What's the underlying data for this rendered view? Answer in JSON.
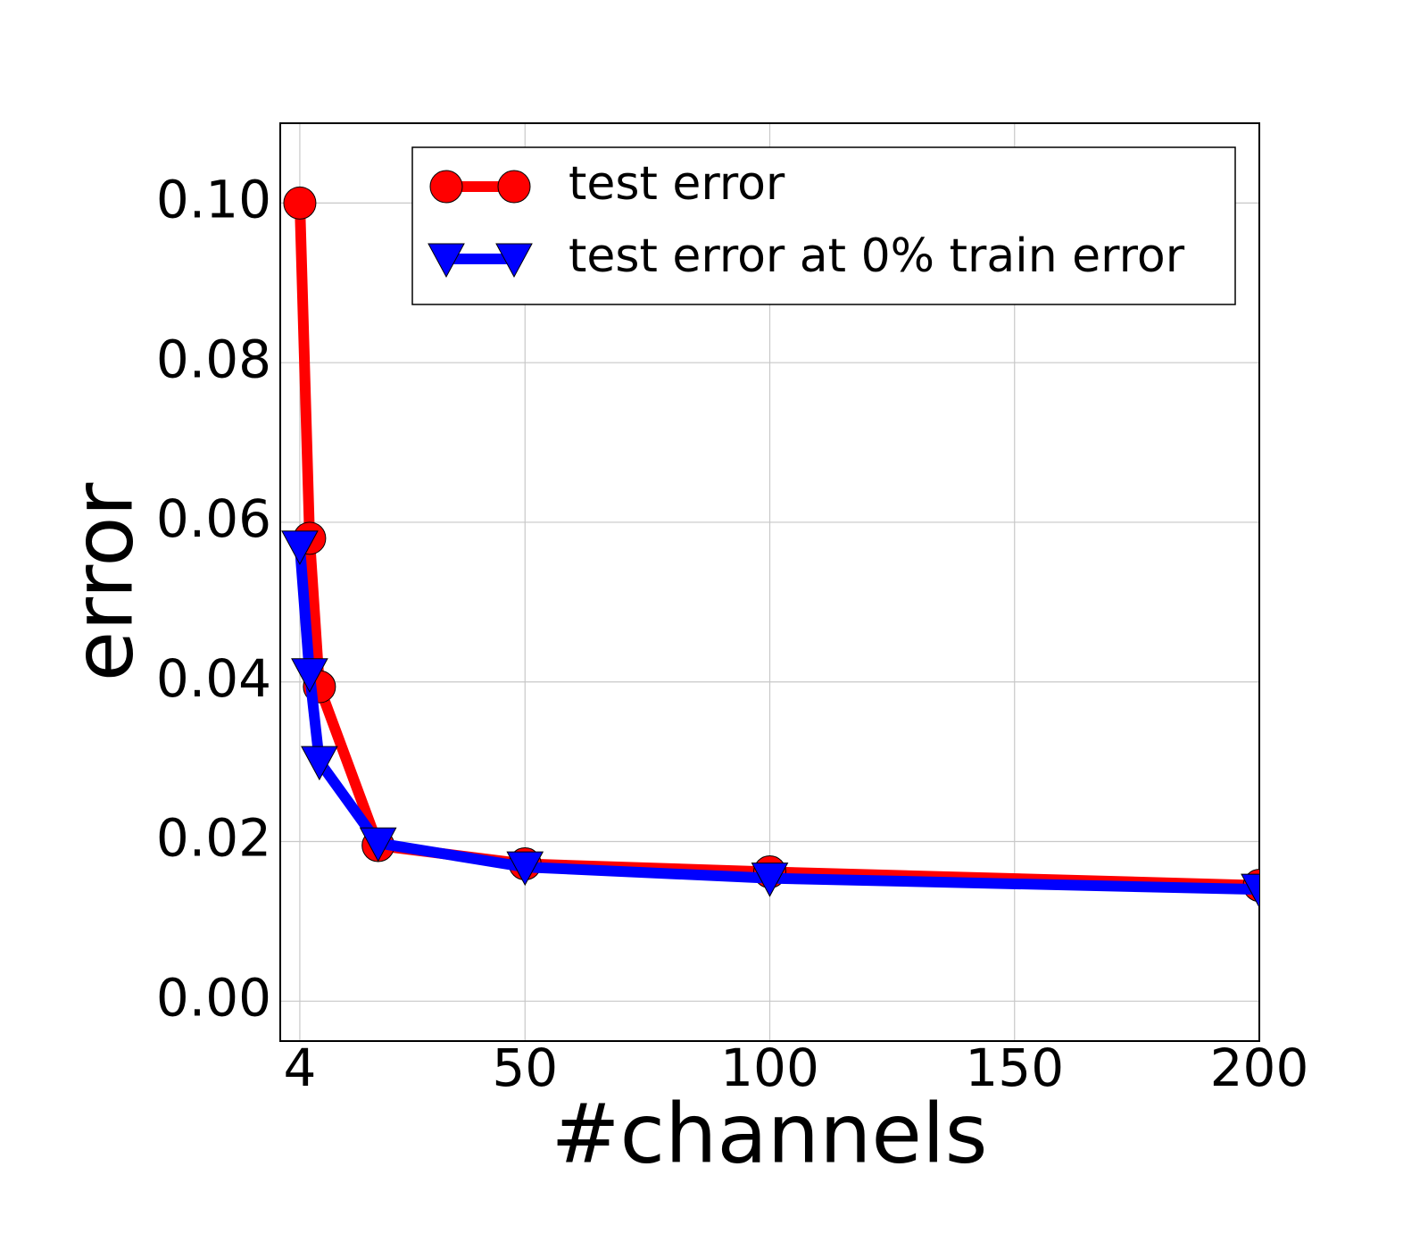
{
  "chart_data": {
    "type": "line",
    "x_label": "#channels",
    "y_label": "error",
    "x": [
      4,
      6,
      8,
      20,
      50,
      100,
      200
    ],
    "series": [
      {
        "name": "test error",
        "color": "#ff0000",
        "marker": "circle",
        "values": [
          0.1,
          0.058,
          0.0394,
          0.0195,
          0.0172,
          0.0162,
          0.0145
        ]
      },
      {
        "name": "test error at 0% train error",
        "color": "#0000ff",
        "marker": "triangle-down",
        "values": [
          0.057,
          0.041,
          0.03,
          0.0198,
          0.0168,
          0.0154,
          0.014
        ]
      }
    ],
    "xlim": [
      0,
      200
    ],
    "ylim": [
      -0.005,
      0.11
    ],
    "xticks": [
      4,
      50,
      100,
      150,
      200
    ],
    "yticks": [
      {
        "value": 0,
        "label": "0.00"
      },
      {
        "value": 0.02,
        "label": "0.02"
      },
      {
        "value": 0.04,
        "label": "0.04"
      },
      {
        "value": 0.06,
        "label": "0.06"
      },
      {
        "value": 0.08,
        "label": "0.08"
      },
      {
        "value": 0.1,
        "label": "0.10"
      }
    ],
    "grid": true,
    "legend": "upper right"
  }
}
